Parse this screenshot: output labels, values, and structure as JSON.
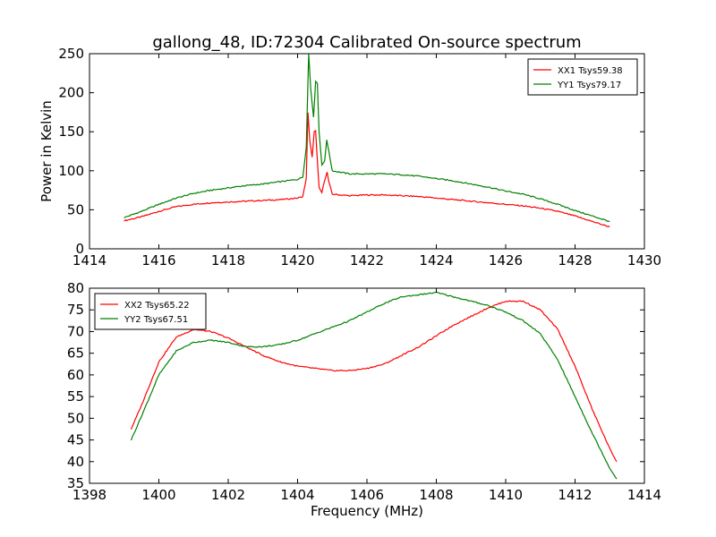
{
  "title": "gallong_48, ID:72304 Calibrated On-source spectrum",
  "chart_data": [
    {
      "type": "line",
      "title": "gallong_48, ID:72304 Calibrated On-source spectrum",
      "xlabel": "",
      "ylabel": "Power in Kelvin",
      "xlim": [
        1414,
        1430
      ],
      "ylim": [
        0,
        250
      ],
      "xticks": [
        "1414",
        "1416",
        "1418",
        "1420",
        "1422",
        "1424",
        "1426",
        "1428",
        "1430"
      ],
      "yticks": [
        "0",
        "50",
        "100",
        "150",
        "200",
        "250"
      ],
      "grid": false,
      "legend_position": "top-right",
      "series": [
        {
          "name": "XX1 Tsys59.38",
          "color": "#ff0000",
          "x": [
            1415.0,
            1415.5,
            1416.0,
            1416.5,
            1417.0,
            1417.5,
            1418.0,
            1418.5,
            1419.0,
            1419.5,
            1420.0,
            1420.15,
            1420.25,
            1420.3,
            1420.35,
            1420.42,
            1420.48,
            1420.52,
            1420.56,
            1420.62,
            1420.7,
            1420.78,
            1420.85,
            1420.9,
            1421.0,
            1421.5,
            1422.0,
            1422.5,
            1423.0,
            1423.5,
            1424.0,
            1424.5,
            1425.0,
            1425.5,
            1426.0,
            1426.5,
            1427.0,
            1427.5,
            1428.0,
            1428.5,
            1429.0
          ],
          "y": [
            36,
            41,
            48,
            54,
            57,
            59,
            60,
            61,
            62,
            63,
            65,
            67,
            90,
            174,
            140,
            117,
            150,
            152,
            120,
            78,
            72,
            88,
            98,
            86,
            70,
            68,
            69,
            69,
            68,
            67,
            65,
            63,
            61,
            59,
            57,
            55,
            52,
            48,
            42,
            35,
            28
          ]
        },
        {
          "name": "YY1 Tsys79.17",
          "color": "#008000",
          "x": [
            1415.0,
            1415.5,
            1416.0,
            1416.5,
            1417.0,
            1417.5,
            1418.0,
            1418.5,
            1419.0,
            1419.5,
            1420.0,
            1420.15,
            1420.25,
            1420.32,
            1420.38,
            1420.46,
            1420.52,
            1420.57,
            1420.62,
            1420.7,
            1420.78,
            1420.84,
            1420.9,
            1421.0,
            1421.5,
            1422.0,
            1422.5,
            1423.0,
            1423.5,
            1424.0,
            1424.5,
            1425.0,
            1425.5,
            1426.0,
            1426.5,
            1427.0,
            1427.5,
            1428.0,
            1428.5,
            1429.0
          ],
          "y": [
            40,
            48,
            57,
            65,
            71,
            75,
            78,
            81,
            83,
            86,
            89,
            92,
            130,
            250,
            205,
            168,
            215,
            212,
            150,
            108,
            112,
            140,
            125,
            100,
            96,
            96,
            96,
            95,
            93,
            90,
            87,
            83,
            79,
            74,
            70,
            64,
            57,
            49,
            42,
            35
          ]
        }
      ]
    },
    {
      "type": "line",
      "title": "",
      "xlabel": "Frequency (MHz)",
      "ylabel": "",
      "xlim": [
        1398,
        1414
      ],
      "ylim": [
        35,
        80
      ],
      "xticks": [
        "1398",
        "1400",
        "1402",
        "1404",
        "1406",
        "1408",
        "1410",
        "1412",
        "1414"
      ],
      "yticks": [
        "35",
        "40",
        "45",
        "50",
        "55",
        "60",
        "65",
        "70",
        "75",
        "80"
      ],
      "grid": false,
      "legend_position": "top-left",
      "series": [
        {
          "name": "XX2 Tsys65.22",
          "color": "#ff0000",
          "x": [
            1399.2,
            1399.5,
            1400.0,
            1400.5,
            1401.0,
            1401.5,
            1402.0,
            1402.5,
            1403.0,
            1403.5,
            1404.0,
            1404.5,
            1405.0,
            1405.5,
            1406.0,
            1406.5,
            1407.0,
            1407.5,
            1408.0,
            1408.5,
            1409.0,
            1409.5,
            1410.0,
            1410.5,
            1411.0,
            1411.5,
            1412.0,
            1412.5,
            1413.0,
            1413.2
          ],
          "y": [
            47.5,
            53.0,
            63.0,
            68.7,
            70.5,
            70.0,
            68.5,
            66.5,
            64.5,
            63.0,
            62.0,
            61.5,
            61.0,
            61.0,
            61.5,
            62.5,
            64.5,
            66.5,
            69.0,
            71.5,
            73.5,
            75.5,
            77.0,
            77.0,
            75.0,
            70.5,
            62.0,
            52.0,
            43.0,
            40.0
          ]
        },
        {
          "name": "YY2 Tsys67.51",
          "color": "#008000",
          "x": [
            1399.2,
            1399.5,
            1400.0,
            1400.5,
            1401.0,
            1401.5,
            1402.0,
            1402.5,
            1403.0,
            1403.5,
            1404.0,
            1404.5,
            1405.0,
            1405.5,
            1406.0,
            1406.5,
            1407.0,
            1407.5,
            1408.0,
            1408.5,
            1409.0,
            1409.5,
            1410.0,
            1410.5,
            1411.0,
            1411.5,
            1412.0,
            1412.5,
            1413.0,
            1413.2
          ],
          "y": [
            45.0,
            50.5,
            60.0,
            65.5,
            67.5,
            68.0,
            67.5,
            66.5,
            66.5,
            67.0,
            68.0,
            69.5,
            71.0,
            72.5,
            74.5,
            76.5,
            78.0,
            78.5,
            79.0,
            78.0,
            77.0,
            76.0,
            74.5,
            72.5,
            69.5,
            63.5,
            55.0,
            46.5,
            38.5,
            36.0
          ]
        }
      ]
    }
  ]
}
